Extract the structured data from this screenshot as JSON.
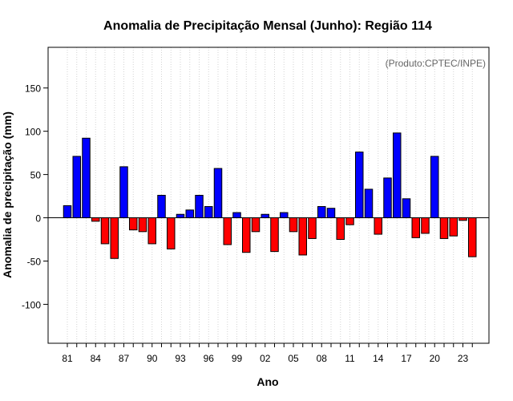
{
  "chart_data": {
    "type": "bar",
    "title": "Anomalia de Precipitação Mensal (Junho): Região 114",
    "xlabel": "Ano",
    "ylabel": "Anomalia de precipitação (mm)",
    "source_note": "(Produto:CPTEC/INPE)",
    "ylim": [
      -145,
      197
    ],
    "yticks": [
      -100,
      -50,
      0,
      50,
      100,
      150
    ],
    "ytick_labels": [
      "-100",
      "-50",
      "0",
      "50",
      "100",
      "150"
    ],
    "x_tick_labels": [
      "81",
      "84",
      "87",
      "90",
      "93",
      "96",
      "99",
      "02",
      "05",
      "08",
      "11",
      "14",
      "17",
      "20",
      "23"
    ],
    "years": [
      1981,
      1982,
      1983,
      1984,
      1985,
      1986,
      1987,
      1988,
      1989,
      1990,
      1991,
      1992,
      1993,
      1994,
      1995,
      1996,
      1997,
      1998,
      1999,
      2000,
      2001,
      2002,
      2003,
      2004,
      2005,
      2006,
      2007,
      2008,
      2009,
      2010,
      2011,
      2012,
      2013,
      2014,
      2015,
      2016,
      2017,
      2018,
      2019,
      2020,
      2021,
      2022,
      2023,
      2024
    ],
    "values": [
      14,
      71,
      92,
      -4,
      -30,
      -47,
      59,
      -14,
      -16,
      -30,
      26,
      -36,
      4,
      9,
      26,
      13,
      57,
      -31,
      6,
      -40,
      -16,
      4,
      -39,
      6,
      -16,
      -43,
      -24,
      13,
      11,
      -25,
      -8,
      76,
      33,
      -19,
      46,
      98,
      22,
      -23,
      -18,
      71,
      -24,
      -21,
      -3,
      -45
    ],
    "colors": {
      "positive": "#0000ff",
      "negative": "#ff0000",
      "grid": "#d3d3d3",
      "zero_line": "#000000",
      "frame": "#000000",
      "source_text": "#666666"
    },
    "grid": true,
    "legend": "none"
  }
}
